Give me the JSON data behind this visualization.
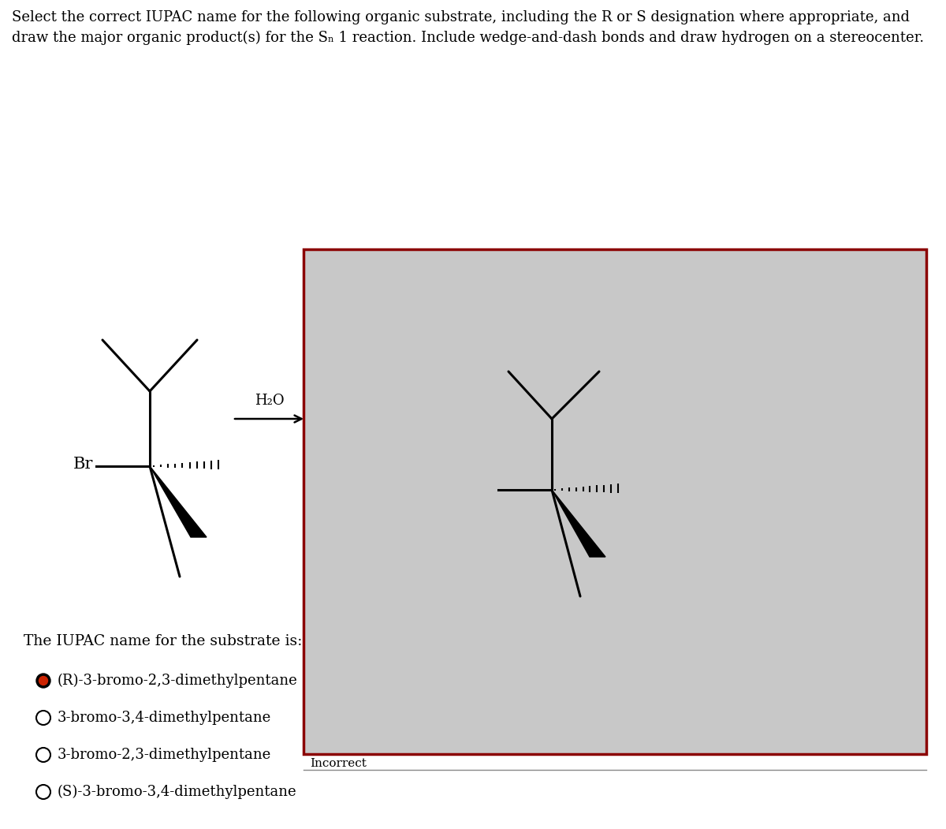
{
  "title_line1": "Select the correct IUPAC name for the following organic substrate, including the R or S designation where appropriate, and",
  "title_line2": "draw the major organic product(s) for the Sₙ 1 reaction. Include wedge-and-dash bonds and draw hydrogen on a stereocenter.",
  "box_border_color": "#8b0000",
  "box_bg": "#c8c8c8",
  "incorrect_text": "Incorrect",
  "iupac_label": "The IUPAC name for the substrate is:",
  "options": [
    "(R)-3-bromo-2,3-dimethylpentane",
    "3-bromo-3,4-dimethylpentane",
    "3-bromo-2,3-dimethylpentane",
    "(S)-3-bromo-3,4-dimethylpentane"
  ],
  "selected_option": 0,
  "h2o_label": "H₂O"
}
